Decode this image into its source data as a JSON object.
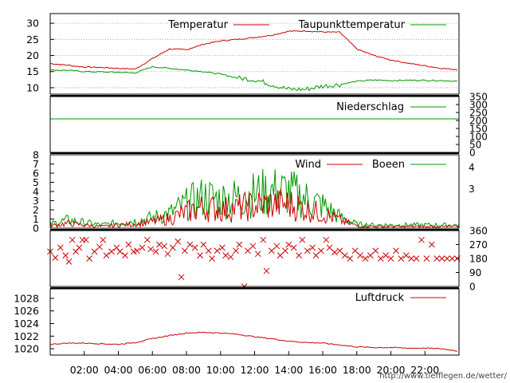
{
  "credit": "http://www.tiefflegen.de/wetter/",
  "colors": {
    "red": "#cc0000",
    "green": "#009900"
  },
  "chart_data": [
    {
      "type": "line",
      "panel": "temperature",
      "x": [
        0,
        1,
        2,
        3,
        4,
        5,
        6,
        7,
        8,
        9,
        10,
        11,
        12,
        13,
        14,
        15,
        16,
        17,
        18,
        19,
        20,
        21,
        22,
        23,
        24
      ],
      "yticks": [
        "10",
        "15",
        "20",
        "25",
        "30"
      ],
      "ylim": [
        8,
        33
      ],
      "grid": true,
      "legend_placement": "top",
      "series": [
        {
          "name": "Temperatur",
          "color": "#cc0000",
          "values": [
            17.5,
            17.0,
            16.4,
            16.3,
            16.0,
            15.8,
            19.0,
            22.0,
            21.8,
            23.5,
            24.5,
            25.0,
            25.6,
            26.3,
            27.5,
            27.6,
            27.3,
            27.2,
            22.0,
            20.0,
            18.6,
            17.6,
            16.8,
            16.0,
            15.6
          ]
        },
        {
          "name": "Taupunkttemperatur",
          "color": "#009900",
          "values": [
            15.5,
            15.4,
            15.0,
            14.9,
            14.8,
            14.6,
            16.5,
            16.0,
            15.5,
            15.0,
            14.2,
            13.0,
            12.5,
            11.0,
            9.5,
            9.5,
            10.5,
            11.0,
            12.0,
            12.4,
            12.2,
            12.3,
            12.3,
            12.2,
            12.0
          ]
        }
      ]
    },
    {
      "type": "line",
      "panel": "precipitation",
      "x": [
        0,
        24
      ],
      "yticks": [
        "0",
        "50",
        "100",
        "150",
        "200",
        "250",
        "300",
        "350"
      ],
      "ylim": [
        0,
        350
      ],
      "series": [
        {
          "name": "Niederschlag",
          "color": "#009900",
          "values": [
            210,
            210
          ]
        }
      ]
    },
    {
      "type": "line",
      "panel": "wind",
      "x": [
        0,
        1,
        2,
        3,
        4,
        5,
        6,
        7,
        8,
        9,
        10,
        11,
        12,
        13,
        14,
        15,
        16,
        17,
        18,
        19,
        20,
        21,
        22,
        23,
        24
      ],
      "yticks": [
        "0",
        "1",
        "2",
        "3",
        "4",
        "5",
        "6",
        "7",
        "8"
      ],
      "ylim": [
        0,
        8
      ],
      "right_ticks": [
        "3",
        "4"
      ],
      "series": [
        {
          "name": "Wind",
          "color": "#cc0000",
          "values": [
            0.3,
            0.6,
            0.4,
            0.2,
            0.4,
            0.5,
            0.8,
            1.2,
            2.0,
            2.6,
            2.3,
            2.5,
            2.8,
            3.0,
            3.0,
            2.4,
            1.8,
            1.0,
            0.3,
            0.2,
            0.2,
            0.2,
            0.2,
            0.2,
            0.2
          ]
        },
        {
          "name": "Boeen",
          "color": "#009900",
          "values": [
            0.5,
            1.0,
            0.7,
            0.4,
            0.7,
            0.9,
            1.3,
            1.8,
            3.0,
            3.9,
            3.6,
            3.8,
            4.2,
            4.6,
            4.5,
            3.7,
            2.8,
            1.4,
            0.5,
            0.4,
            0.4,
            0.4,
            0.4,
            0.4,
            0.4
          ]
        }
      ]
    },
    {
      "type": "scatter",
      "panel": "wind-direction",
      "yticks": [
        "0",
        "90",
        "180",
        "270",
        "360"
      ],
      "ylim": [
        0,
        360
      ],
      "color": "#cc0000",
      "x": [
        0.0,
        0.3,
        0.6,
        0.9,
        1.1,
        1.3,
        1.5,
        1.7,
        1.9,
        2.1,
        2.3,
        2.6,
        2.9,
        3.1,
        3.3,
        3.6,
        3.9,
        4.1,
        4.4,
        4.6,
        4.9,
        5.1,
        5.4,
        5.7,
        5.9,
        6.2,
        6.4,
        6.7,
        6.9,
        7.2,
        7.5,
        7.7,
        7.9,
        8.2,
        8.5,
        8.8,
        9.0,
        9.3,
        9.5,
        9.8,
        10.1,
        10.3,
        10.6,
        10.9,
        11.1,
        11.4,
        11.6,
        11.9,
        12.2,
        12.5,
        12.7,
        13.0,
        13.3,
        13.5,
        13.8,
        14.0,
        14.3,
        14.6,
        14.8,
        15.1,
        15.4,
        15.6,
        15.9,
        16.2,
        16.4,
        16.7,
        17.0,
        17.3,
        17.6,
        17.9,
        18.2,
        18.5,
        18.8,
        19.1,
        19.4,
        19.7,
        20.0,
        20.3,
        20.6,
        20.9,
        21.2,
        21.5,
        21.8,
        22.1,
        22.4,
        22.7,
        23.0,
        23.3,
        23.6,
        23.9
      ],
      "y": [
        225,
        185,
        250,
        200,
        160,
        300,
        225,
        250,
        300,
        300,
        180,
        225,
        255,
        300,
        200,
        225,
        250,
        225,
        200,
        270,
        225,
        230,
        250,
        300,
        240,
        225,
        270,
        260,
        210,
        250,
        290,
        60,
        230,
        270,
        250,
        200,
        270,
        230,
        180,
        230,
        250,
        200,
        190,
        230,
        270,
        0,
        230,
        260,
        210,
        300,
        100,
        230,
        260,
        200,
        230,
        270,
        250,
        200,
        300,
        230,
        250,
        200,
        230,
        300,
        250,
        220,
        230,
        200,
        180,
        230,
        200,
        180,
        200,
        230,
        180,
        200,
        180,
        230,
        180,
        200,
        180,
        180,
        300,
        180,
        270,
        180,
        180,
        180,
        180,
        180
      ]
    },
    {
      "type": "line",
      "panel": "pressure",
      "x": [
        0,
        1,
        2,
        3,
        4,
        5,
        6,
        7,
        8,
        9,
        10,
        11,
        12,
        13,
        14,
        15,
        16,
        17,
        18,
        19,
        20,
        21,
        22,
        23,
        24
      ],
      "yticks": [
        "1020",
        "1022",
        "1024",
        "1026",
        "1028"
      ],
      "ylim": [
        1019,
        1029.5
      ],
      "series": [
        {
          "name": "Luftdruck",
          "color": "#cc0000",
          "values": [
            1020.7,
            1020.9,
            1020.9,
            1020.8,
            1020.7,
            1021.0,
            1021.6,
            1022.1,
            1022.5,
            1022.6,
            1022.5,
            1022.3,
            1021.9,
            1021.6,
            1021.2,
            1021.0,
            1020.9,
            1020.6,
            1020.3,
            1020.2,
            1020.2,
            1020.1,
            1020.1,
            1020.0,
            1019.6
          ]
        }
      ]
    }
  ],
  "xaxis": {
    "tick_labels": [
      "02:00",
      "04:00",
      "06:00",
      "08:00",
      "10:00",
      "12:00",
      "14:00",
      "16:00",
      "18:00",
      "20:00",
      "22:00"
    ],
    "tick_hours": [
      2,
      4,
      6,
      8,
      10,
      12,
      14,
      16,
      18,
      20,
      22
    ],
    "xlim": [
      0,
      24
    ]
  }
}
